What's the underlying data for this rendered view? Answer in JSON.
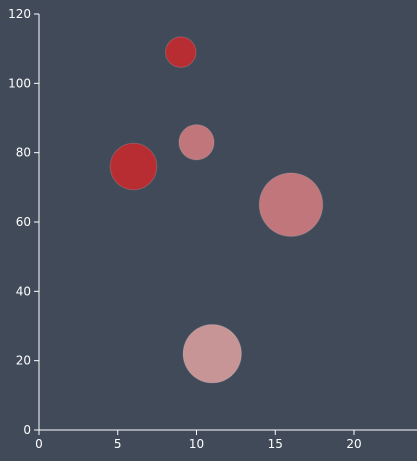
{
  "chart_data": {
    "type": "scatter",
    "title": "",
    "xlabel": "",
    "ylabel": "",
    "xlim": [
      0,
      24
    ],
    "ylim": [
      0,
      120
    ],
    "x_ticks": [
      "0",
      "5",
      "10",
      "15",
      "20"
    ],
    "y_ticks": [
      "0",
      "20",
      "40",
      "60",
      "80",
      "100",
      "120"
    ],
    "grid": false,
    "background_color": "#404a59",
    "axis_color": "#ffffff",
    "points": [
      {
        "x": 9,
        "y": 109,
        "size": 3,
        "color": "#b82d31"
      },
      {
        "x": 10,
        "y": 83,
        "size": 4,
        "color": "#c0767a"
      },
      {
        "x": 6,
        "y": 76,
        "size": 7,
        "color": "#b82d31"
      },
      {
        "x": 16,
        "y": 65,
        "size": 13,
        "color": "#c0767a"
      },
      {
        "x": 11,
        "y": 22,
        "size": 11,
        "color": "#c89597"
      }
    ]
  }
}
